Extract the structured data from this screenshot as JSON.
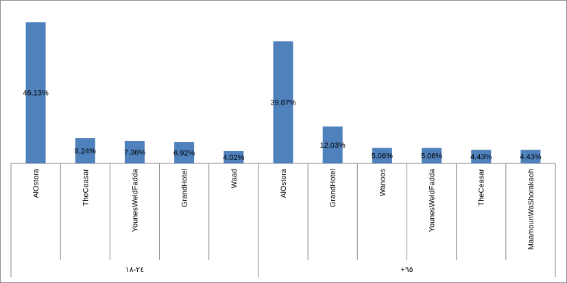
{
  "chart_data": {
    "type": "bar",
    "title": "",
    "xlabel": "",
    "ylabel": "",
    "ylim": [
      0,
      50
    ],
    "grid": false,
    "legend": "none",
    "bar_color": "#4f81bd",
    "groups": [
      {
        "label": "٢٤-١٨",
        "categories": [
          "AlOstora",
          "TheCeasar",
          "YounesWeldFadda",
          "GrandHotel",
          "Waad"
        ],
        "values": [
          46.13,
          8.24,
          7.36,
          6.92,
          4.02
        ],
        "value_labels": [
          "46.13%",
          "8.24%",
          "7.36%",
          "6.92%",
          "4.02%"
        ]
      },
      {
        "label": "+٦٥",
        "categories": [
          "AlOstora",
          "GrandHotel",
          "Wanoos",
          "YounesWeldFadda",
          "TheCeasar",
          "MaamounWaShorakaoh"
        ],
        "values": [
          39.87,
          12.03,
          5.06,
          5.06,
          4.43,
          4.43
        ],
        "value_labels": [
          "39.87%",
          "12.03%",
          "5.06%",
          "5.06%",
          "4.43%",
          "4.43%"
        ]
      }
    ]
  }
}
